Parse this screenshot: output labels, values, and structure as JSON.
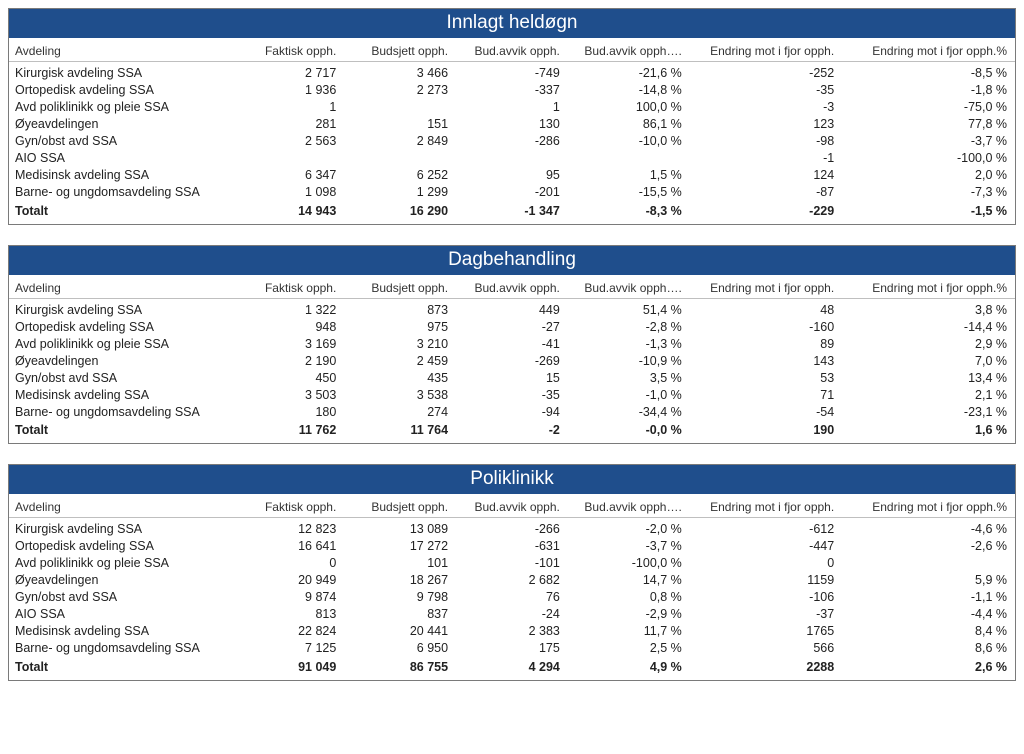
{
  "columns": {
    "dept": "Avdeling",
    "faktisk": "Faktisk opph.",
    "budsjett": "Budsjett opph.",
    "avvik": "Bud.avvik opph.",
    "avvikp": "Bud.avvik opph….",
    "endr": "Endring mot i fjor opph.",
    "endrp": "Endring mot i fjor opph.%"
  },
  "total_label": "Totalt",
  "panels": [
    {
      "title": "Innlagt heldøgn",
      "rows": [
        {
          "dept": "Kirurgisk avdeling SSA",
          "faktisk": "2 717",
          "budsjett": "3 466",
          "avvik": "-749",
          "avvikp": "-21,6 %",
          "endr": "-252",
          "endrp": "-8,5 %"
        },
        {
          "dept": "Ortopedisk avdeling SSA",
          "faktisk": "1 936",
          "budsjett": "2 273",
          "avvik": "-337",
          "avvikp": "-14,8 %",
          "endr": "-35",
          "endrp": "-1,8 %"
        },
        {
          "dept": "Avd poliklinikk og pleie SSA",
          "faktisk": "1",
          "budsjett": "",
          "avvik": "1",
          "avvikp": "100,0 %",
          "endr": "-3",
          "endrp": "-75,0 %"
        },
        {
          "dept": "Øyeavdelingen",
          "faktisk": "281",
          "budsjett": "151",
          "avvik": "130",
          "avvikp": "86,1 %",
          "endr": "123",
          "endrp": "77,8 %"
        },
        {
          "dept": "Gyn/obst avd SSA",
          "faktisk": "2 563",
          "budsjett": "2 849",
          "avvik": "-286",
          "avvikp": "-10,0 %",
          "endr": "-98",
          "endrp": "-3,7 %"
        },
        {
          "dept": "AIO SSA",
          "faktisk": "",
          "budsjett": "",
          "avvik": "",
          "avvikp": "",
          "endr": "-1",
          "endrp": "-100,0 %"
        },
        {
          "dept": "Medisinsk avdeling SSA",
          "faktisk": "6 347",
          "budsjett": "6 252",
          "avvik": "95",
          "avvikp": "1,5 %",
          "endr": "124",
          "endrp": "2,0 %"
        },
        {
          "dept": "Barne- og ungdomsavdeling SSA",
          "faktisk": "1 098",
          "budsjett": "1 299",
          "avvik": "-201",
          "avvikp": "-15,5 %",
          "endr": "-87",
          "endrp": "-7,3 %"
        }
      ],
      "total": {
        "faktisk": "14 943",
        "budsjett": "16 290",
        "avvik": "-1 347",
        "avvikp": "-8,3 %",
        "endr": "-229",
        "endrp": "-1,5 %"
      }
    },
    {
      "title": "Dagbehandling",
      "rows": [
        {
          "dept": "Kirurgisk avdeling SSA",
          "faktisk": "1 322",
          "budsjett": "873",
          "avvik": "449",
          "avvikp": "51,4 %",
          "endr": "48",
          "endrp": "3,8 %"
        },
        {
          "dept": "Ortopedisk avdeling SSA",
          "faktisk": "948",
          "budsjett": "975",
          "avvik": "-27",
          "avvikp": "-2,8 %",
          "endr": "-160",
          "endrp": "-14,4 %"
        },
        {
          "dept": "Avd poliklinikk og pleie SSA",
          "faktisk": "3 169",
          "budsjett": "3 210",
          "avvik": "-41",
          "avvikp": "-1,3 %",
          "endr": "89",
          "endrp": "2,9 %"
        },
        {
          "dept": "Øyeavdelingen",
          "faktisk": "2 190",
          "budsjett": "2 459",
          "avvik": "-269",
          "avvikp": "-10,9 %",
          "endr": "143",
          "endrp": "7,0 %"
        },
        {
          "dept": "Gyn/obst avd SSA",
          "faktisk": "450",
          "budsjett": "435",
          "avvik": "15",
          "avvikp": "3,5 %",
          "endr": "53",
          "endrp": "13,4 %"
        },
        {
          "dept": "Medisinsk avdeling SSA",
          "faktisk": "3 503",
          "budsjett": "3 538",
          "avvik": "-35",
          "avvikp": "-1,0 %",
          "endr": "71",
          "endrp": "2,1 %"
        },
        {
          "dept": "Barne- og ungdomsavdeling SSA",
          "faktisk": "180",
          "budsjett": "274",
          "avvik": "-94",
          "avvikp": "-34,4 %",
          "endr": "-54",
          "endrp": "-23,1 %"
        }
      ],
      "total": {
        "faktisk": "11 762",
        "budsjett": "11 764",
        "avvik": "-2",
        "avvikp": "-0,0 %",
        "endr": "190",
        "endrp": "1,6 %"
      }
    },
    {
      "title": "Poliklinikk",
      "rows": [
        {
          "dept": "Kirurgisk avdeling SSA",
          "faktisk": "12 823",
          "budsjett": "13 089",
          "avvik": "-266",
          "avvikp": "-2,0 %",
          "endr": "-612",
          "endrp": "-4,6 %"
        },
        {
          "dept": "Ortopedisk avdeling SSA",
          "faktisk": "16 641",
          "budsjett": "17 272",
          "avvik": "-631",
          "avvikp": "-3,7 %",
          "endr": "-447",
          "endrp": "-2,6 %"
        },
        {
          "dept": "Avd poliklinikk og pleie SSA",
          "faktisk": "0",
          "budsjett": "101",
          "avvik": "-101",
          "avvikp": "-100,0 %",
          "endr": "0",
          "endrp": ""
        },
        {
          "dept": "Øyeavdelingen",
          "faktisk": "20 949",
          "budsjett": "18 267",
          "avvik": "2 682",
          "avvikp": "14,7 %",
          "endr": "1159",
          "endrp": "5,9 %"
        },
        {
          "dept": "Gyn/obst avd SSA",
          "faktisk": "9 874",
          "budsjett": "9 798",
          "avvik": "76",
          "avvikp": "0,8 %",
          "endr": "-106",
          "endrp": "-1,1 %"
        },
        {
          "dept": "AIO SSA",
          "faktisk": "813",
          "budsjett": "837",
          "avvik": "-24",
          "avvikp": "-2,9 %",
          "endr": "-37",
          "endrp": "-4,4 %"
        },
        {
          "dept": "Medisinsk avdeling SSA",
          "faktisk": "22 824",
          "budsjett": "20 441",
          "avvik": "2 383",
          "avvikp": "11,7 %",
          "endr": "1765",
          "endrp": "8,4 %"
        },
        {
          "dept": "Barne- og ungdomsavdeling SSA",
          "faktisk": "7 125",
          "budsjett": "6 950",
          "avvik": "175",
          "avvikp": "2,5 %",
          "endr": "566",
          "endrp": "8,6 %"
        }
      ],
      "total": {
        "faktisk": "91 049",
        "budsjett": "86 755",
        "avvik": "4 294",
        "avvikp": "4,9 %",
        "endr": "2288",
        "endrp": "2,6 %"
      }
    }
  ]
}
